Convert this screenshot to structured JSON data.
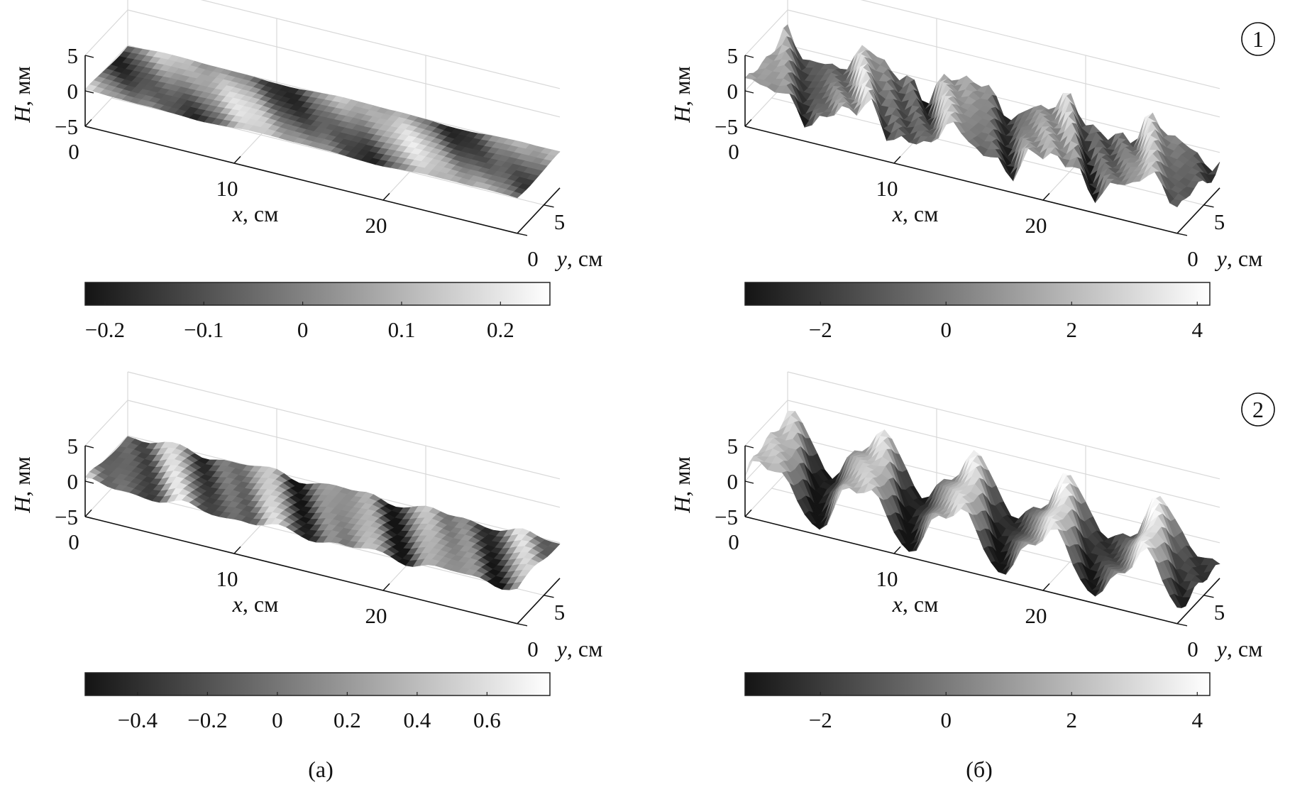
{
  "panel_labels": [
    "(а)",
    "(б)"
  ],
  "row_labels": [
    "1",
    "2"
  ],
  "axis_text": {
    "z_label_var": "H",
    "z_label_unit": ", мм",
    "x_label_var": "x",
    "x_label_unit": ", см",
    "y_label_var": "y",
    "y_label_unit": ", см"
  },
  "chart_data": [
    {
      "id": "a1",
      "type": "surface3d",
      "panel": "(а)",
      "row": "1",
      "zlabel": "H, мм",
      "xlabel": "x, см",
      "ylabel": "y, см",
      "xlim": [
        0,
        29
      ],
      "ylim": [
        0,
        8
      ],
      "zlim": [
        -5,
        5
      ],
      "x_ticks": [
        "0",
        "10",
        "20"
      ],
      "y_ticks": [
        "0",
        "5"
      ],
      "z_ticks": [
        "5",
        "0",
        "−5"
      ],
      "colormap": "gray",
      "colorbar": {
        "range": [
          -0.22,
          0.25
        ],
        "ticks": [
          "−0.2",
          "−0.1",
          "0",
          "0.1",
          "0.2"
        ],
        "tick_values": [
          -0.2,
          -0.1,
          0,
          0.1,
          0.2
        ]
      },
      "surface": {
        "amplitude": 0.25,
        "waves": [
          [
            0.7,
            0.52,
            0.6,
            1.0
          ],
          [
            0.3,
            1.1,
            0.4,
            2.0
          ]
        ]
      }
    },
    {
      "id": "b1",
      "type": "surface3d",
      "panel": "(б)",
      "row": "1",
      "zlabel": "H, мм",
      "xlabel": "x, см",
      "ylabel": "y, см",
      "xlim": [
        0,
        29
      ],
      "ylim": [
        0,
        8
      ],
      "zlim": [
        -5,
        5
      ],
      "x_ticks": [
        "0",
        "10",
        "20"
      ],
      "y_ticks": [
        "0",
        "5"
      ],
      "z_ticks": [
        "5",
        "0",
        "−5"
      ],
      "colormap": "gray",
      "colorbar": {
        "range": [
          -3.2,
          4.2
        ],
        "ticks": [
          "−2",
          "0",
          "2",
          "4"
        ],
        "tick_values": [
          -2,
          0,
          2,
          4
        ]
      },
      "surface": {
        "amplitude": 3.5,
        "waves": [
          [
            0.55,
            0.98,
            0.25,
            0.3
          ],
          [
            0.25,
            2.3,
            0.9,
            1.1
          ],
          [
            0.2,
            3.6,
            1.6,
            2.4
          ]
        ]
      }
    },
    {
      "id": "a2",
      "type": "surface3d",
      "panel": "(а)",
      "row": "2",
      "zlabel": "H, мм",
      "xlabel": "x, см",
      "ylabel": "y, см",
      "xlim": [
        0,
        29
      ],
      "ylim": [
        0,
        8
      ],
      "zlim": [
        -5,
        5
      ],
      "x_ticks": [
        "0",
        "10",
        "20"
      ],
      "y_ticks": [
        "0",
        "5"
      ],
      "z_ticks": [
        "5",
        "0",
        "−5"
      ],
      "colormap": "gray",
      "colorbar": {
        "range": [
          -0.55,
          0.78
        ],
        "ticks": [
          "−0.4",
          "−0.2",
          "0",
          "0.2",
          "0.4",
          "0.6"
        ],
        "tick_values": [
          -0.4,
          -0.2,
          0,
          0.2,
          0.4,
          0.6
        ]
      },
      "surface": {
        "amplitude": 0.7,
        "waves": [
          [
            0.6,
            1.05,
            0.5,
            0.7
          ],
          [
            0.4,
            1.9,
            0.8,
            1.5
          ]
        ]
      }
    },
    {
      "id": "b2",
      "type": "surface3d",
      "panel": "(б)",
      "row": "2",
      "zlabel": "H, мм",
      "xlabel": "x, см",
      "ylabel": "y, см",
      "xlim": [
        0,
        29
      ],
      "ylim": [
        0,
        8
      ],
      "zlim": [
        -5,
        5
      ],
      "x_ticks": [
        "0",
        "10",
        "20"
      ],
      "y_ticks": [
        "0",
        "5"
      ],
      "z_ticks": [
        "5",
        "0",
        "−5"
      ],
      "colormap": "gray",
      "colorbar": {
        "range": [
          -3.2,
          4.2
        ],
        "ticks": [
          "−2",
          "0",
          "2",
          "4"
        ],
        "tick_values": [
          -2,
          0,
          2,
          4
        ]
      },
      "surface": {
        "amplitude": 4.5,
        "waves": [
          [
            0.8,
            1.0,
            0.2,
            0.0
          ],
          [
            0.2,
            2.1,
            0.6,
            0.8
          ]
        ]
      }
    }
  ]
}
